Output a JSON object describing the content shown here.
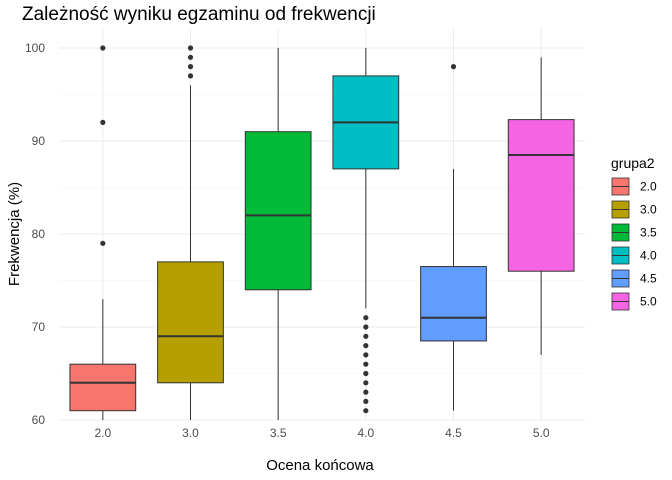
{
  "chart_data": {
    "type": "boxplot",
    "title": "Zależność wyniku egzaminu od frekwencji",
    "xlabel": "Ocena końcowa",
    "ylabel": "Frekwencja (%)",
    "ylim": [
      60,
      100
    ],
    "yticks": [
      "60",
      "70",
      "80",
      "90",
      "100"
    ],
    "categories": [
      "2.0",
      "3.0",
      "3.5",
      "4.0",
      "4.5",
      "5.0"
    ],
    "legend": {
      "title": "grupa2",
      "position": "right"
    },
    "grid": true,
    "boxes": [
      {
        "category": "2.0",
        "color": "#F8766D",
        "whisker_low": 60,
        "q1": 61,
        "median": 64,
        "q3": 66,
        "whisker_high": 73,
        "outliers": [
          79,
          92,
          100
        ]
      },
      {
        "category": "3.0",
        "color": "#B79F00",
        "whisker_low": 60,
        "q1": 64,
        "median": 69,
        "q3": 77,
        "whisker_high": 96,
        "outliers": [
          97,
          98,
          99,
          100
        ]
      },
      {
        "category": "3.5",
        "color": "#00BA38",
        "whisker_low": 60,
        "q1": 74,
        "median": 82,
        "q3": 91,
        "whisker_high": 100,
        "outliers": []
      },
      {
        "category": "4.0",
        "color": "#00BFC4",
        "whisker_low": 72,
        "q1": 87,
        "median": 92,
        "q3": 97,
        "whisker_high": 100,
        "outliers": [
          61,
          62,
          63,
          64,
          65,
          66,
          67,
          68,
          69,
          70,
          71
        ]
      },
      {
        "category": "4.5",
        "color": "#619CFF",
        "whisker_low": 61,
        "q1": 68.5,
        "median": 71,
        "q3": 76.5,
        "whisker_high": 87,
        "outliers": [
          98
        ]
      },
      {
        "category": "5.0",
        "color": "#F564E3",
        "whisker_low": 67,
        "q1": 76,
        "median": 88.5,
        "q3": 92.3,
        "whisker_high": 99,
        "outliers": []
      }
    ]
  }
}
